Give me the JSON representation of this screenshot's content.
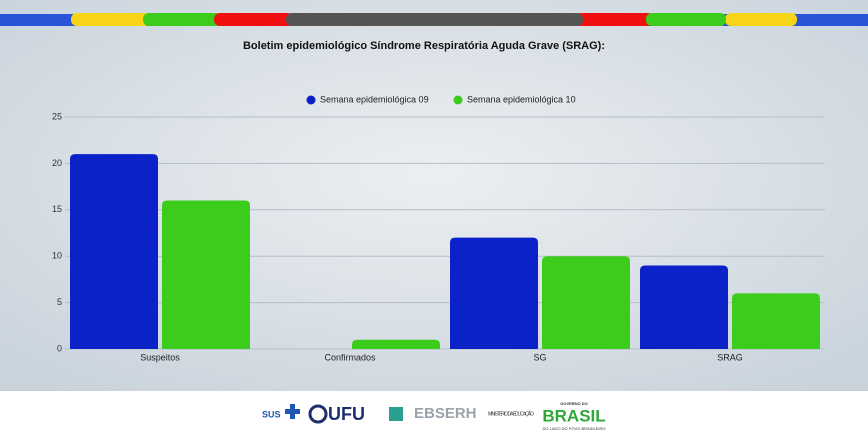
{
  "chart_data": {
    "type": "bar",
    "title": "Boletim epidemiológico Síndrome Respiratória Aguda Grave (SRAG):",
    "categories": [
      "Suspeitos",
      "Confirmados",
      "SG",
      "SRAG"
    ],
    "series": [
      {
        "name": "Semana epidemiológica 09",
        "color": "#0a22c8",
        "values": [
          21,
          0,
          12,
          9
        ]
      },
      {
        "name": "Semana epidemiológica 10",
        "color": "#3ccc1c",
        "values": [
          16,
          1,
          10,
          6
        ]
      }
    ],
    "ylim": [
      0,
      25
    ],
    "yticks": [
      0,
      5,
      10,
      15,
      20,
      25
    ],
    "grid": true,
    "legend": "top"
  },
  "footer": {
    "sus": "SUS",
    "ufu": "UFU",
    "ebserh": "EBSERH",
    "ministerio": "MINISTÉRIO DA EDUCAÇÃO",
    "governo": "GOVERNO DO",
    "brasil": "BRASIL",
    "slogan": "DO LADO DO POVO BRASILEIRO"
  }
}
